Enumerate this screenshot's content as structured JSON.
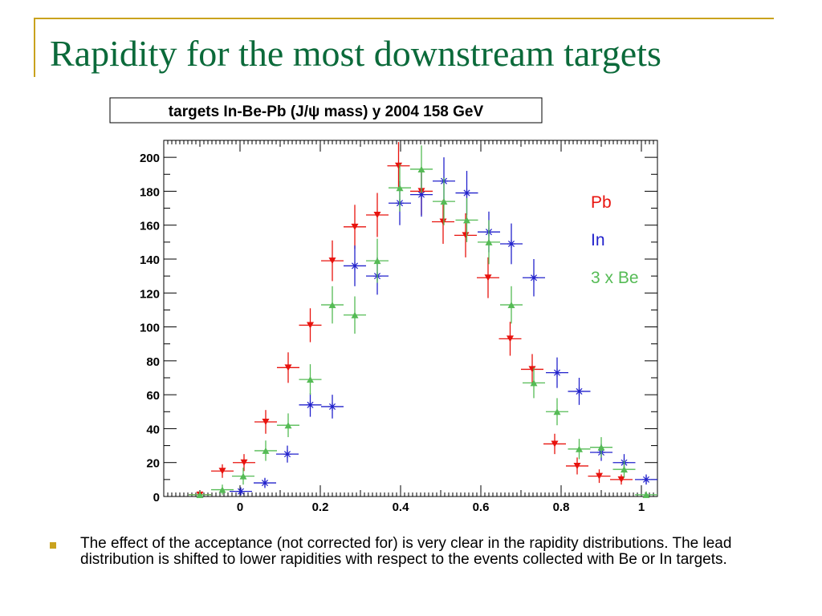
{
  "slide": {
    "title": "Rapidity for the most downstream targets",
    "bullet": "The effect of the acceptance (not corrected for) is very clear in the rapidity distributions. The lead distribution is shifted to lower rapidities with respect to the events collected with Be or In targets.",
    "colors": {
      "title": "#0b6a3a",
      "accent": "#c9a21e",
      "bullet": "#c9a21e"
    }
  },
  "chart_data": {
    "type": "scatter",
    "title": "targets In-Be-Pb (J/ψ mass) y 2004 158 GeV",
    "xlabel": "",
    "ylabel": "",
    "xlim": [
      -0.19,
      1.04
    ],
    "ylim": [
      0,
      210
    ],
    "x_ticks": [
      "0",
      "0.2",
      "0.4",
      "0.6",
      "0.8",
      "1"
    ],
    "y_ticks": [
      "0",
      "20",
      "40",
      "60",
      "80",
      "100",
      "120",
      "140",
      "160",
      "180",
      "200"
    ],
    "bin_half_width": 0.028,
    "legend_position": "top-right",
    "series": [
      {
        "name": "Pb",
        "color": "#e8130e",
        "marker": "down-triangle",
        "x": [
          -0.1,
          -0.044,
          0.01,
          0.064,
          0.12,
          0.175,
          0.23,
          0.286,
          0.342,
          0.395,
          0.452,
          0.506,
          0.562,
          0.618,
          0.673,
          0.728,
          0.784,
          0.84,
          0.895,
          0.95
        ],
        "y": [
          1,
          15,
          20,
          44,
          76,
          101,
          139,
          159,
          166,
          195,
          180,
          162,
          154,
          129,
          93,
          75,
          31,
          18,
          12,
          10
        ],
        "err": [
          1,
          4,
          5,
          7,
          9,
          10,
          12,
          13,
          13,
          14,
          14,
          13,
          13,
          12,
          10,
          9,
          6,
          5,
          4,
          3
        ]
      },
      {
        "name": "In",
        "color": "#2222cc",
        "marker": "star",
        "x": [
          0.002,
          0.062,
          0.118,
          0.175,
          0.23,
          0.286,
          0.342,
          0.398,
          0.452,
          0.508,
          0.565,
          0.62,
          0.676,
          0.732,
          0.79,
          0.845,
          0.9,
          0.957,
          1.012
        ],
        "y": [
          3,
          8,
          25,
          54,
          53,
          136,
          130,
          173,
          178,
          186,
          179,
          156,
          149,
          129,
          73,
          62,
          26,
          20,
          10
        ],
        "err": [
          2,
          3,
          5,
          7,
          7,
          12,
          11,
          13,
          13,
          14,
          13,
          12,
          12,
          11,
          9,
          8,
          5,
          5,
          3
        ]
      },
      {
        "name": "3 x Be",
        "color": "#55bb55",
        "marker": "up-triangle",
        "x": [
          -0.1,
          -0.044,
          0.008,
          0.064,
          0.12,
          0.175,
          0.23,
          0.286,
          0.342,
          0.398,
          0.452,
          0.508,
          0.565,
          0.62,
          0.676,
          0.732,
          0.79,
          0.845,
          0.9,
          0.957,
          1.012
        ],
        "y": [
          1,
          4,
          12,
          27,
          42,
          69,
          113,
          107,
          139,
          182,
          193,
          174,
          163,
          150,
          113,
          67,
          50,
          28,
          29,
          16,
          1
        ],
        "err": [
          2,
          3,
          5,
          6,
          7,
          9,
          11,
          11,
          13,
          14,
          14,
          14,
          13,
          13,
          11,
          9,
          8,
          6,
          6,
          5,
          2
        ]
      }
    ]
  }
}
